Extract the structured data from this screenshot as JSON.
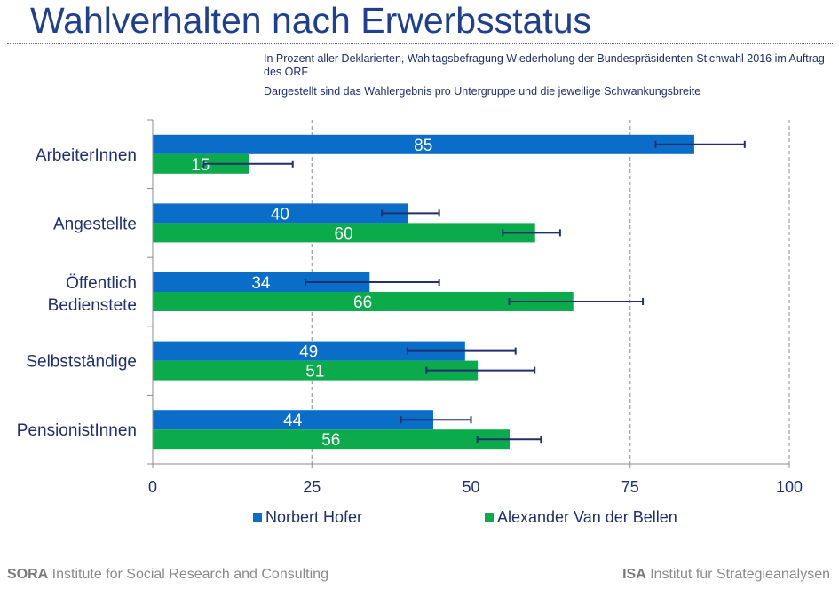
{
  "title": "Wahlverhalten nach Erwerbsstatus",
  "subtitle_1": "In Prozent aller Deklarierten, Wahltagsbefragung Wiederholung der Bundespräsidenten-Stichwahl 2016 im Auftrag des ORF",
  "subtitle_2": "Dargestellt sind das Wahlergebnis pro Untergruppe und die jeweilige Schwankungsbreite",
  "footer": {
    "left_bold": "SORA",
    "left_text": " Institute for Social Research and Consulting",
    "right_bold": "ISA",
    "right_text": " Institut für Strategieanalysen"
  },
  "colors": {
    "hofer": "#0a6ec9",
    "vdb": "#0bab4b",
    "error": "#1f2f6f",
    "text": "#1f2f6f"
  },
  "chart_data": {
    "type": "bar",
    "orientation": "horizontal",
    "categories": [
      "ArbeiterInnen",
      "Angestellte",
      "Öffentlich Bedienstete",
      "Selbstständige",
      "PensionistInnen"
    ],
    "series": [
      {
        "name": "Norbert Hofer",
        "values": [
          85,
          40,
          34,
          49,
          44
        ],
        "error_range": [
          [
            79,
            93
          ],
          [
            36,
            45
          ],
          [
            24,
            45
          ],
          [
            40,
            57
          ],
          [
            39,
            50
          ]
        ]
      },
      {
        "name": "Alexander Van der Bellen",
        "values": [
          15,
          60,
          66,
          51,
          56
        ],
        "error_range": [
          [
            8,
            22
          ],
          [
            55,
            64
          ],
          [
            56,
            77
          ],
          [
            43,
            60
          ],
          [
            51,
            61
          ]
        ]
      }
    ],
    "x_ticks": [
      0,
      25,
      50,
      75,
      100
    ],
    "xlim": [
      0,
      100
    ],
    "grid": "vertical dashed",
    "legend": "bottom"
  }
}
